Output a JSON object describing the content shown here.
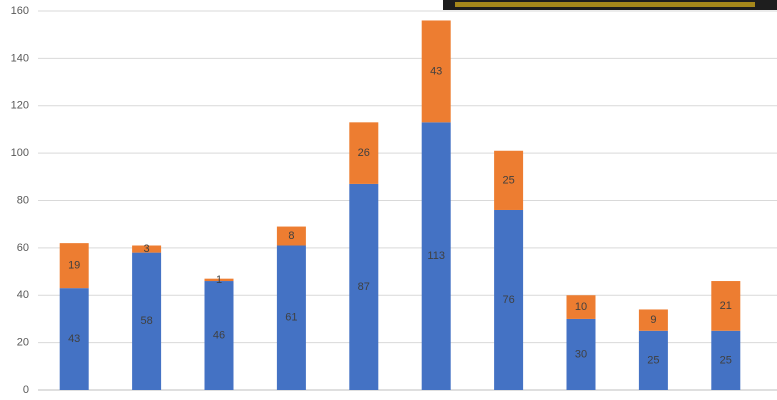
{
  "chart_data": {
    "type": "stacked_bar",
    "categories": [
      null,
      null,
      null,
      null,
      null,
      null,
      null,
      null,
      null,
      null
    ],
    "series": [
      {
        "color": "#4472c4",
        "values": [
          43,
          58,
          46,
          61,
          87,
          113,
          76,
          30,
          25,
          25
        ]
      },
      {
        "color": "#ed7d31",
        "values": [
          19,
          3,
          1,
          8,
          26,
          43,
          25,
          10,
          9,
          21
        ]
      }
    ],
    "ylim": [
      0,
      160
    ],
    "yticks": [
      0,
      20,
      40,
      60,
      80,
      100,
      120,
      140,
      160
    ],
    "grid": true
  }
}
